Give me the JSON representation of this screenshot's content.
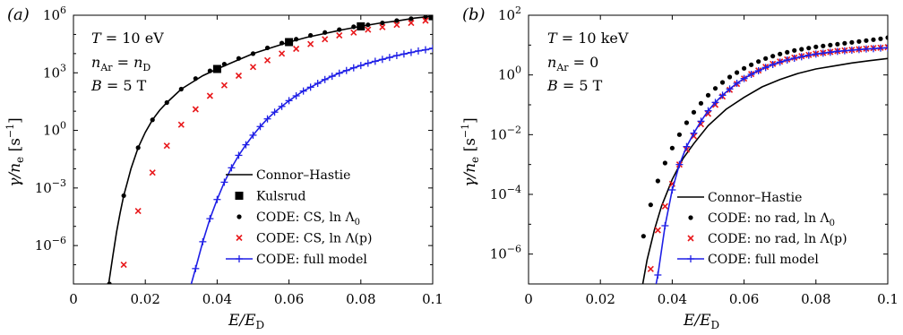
{
  "colors": {
    "black": "#000000",
    "red": "#e8191c",
    "blue": "#1f1fe6"
  },
  "chart_data": [
    {
      "type": "line",
      "panel_label": "(a)",
      "xlabel": "E/E_D",
      "ylabel": "γ/n_e [s^-1]",
      "xlim": [
        0,
        0.1
      ],
      "ylim_log10": [
        -8,
        6
      ],
      "y_scale": "log",
      "x_ticks": [
        0,
        0.02,
        0.04,
        0.06,
        0.08,
        0.1
      ],
      "x_tick_labels": [
        "0",
        "0.02",
        "0.04",
        "0.06",
        "0.08",
        "0.1"
      ],
      "y_tick_exponents": [
        -6,
        -3,
        0,
        3,
        6
      ],
      "y_tick_labels": [
        "10^-6",
        "10^-3",
        "10^0",
        "10^3",
        "10^6"
      ],
      "annotations": [
        "T = 10 eV",
        "n_Ar = n_D",
        "B = 5 T"
      ],
      "legend_position": "bottom-right",
      "series": [
        {
          "name": "Connor–Hastie",
          "style": "line",
          "color": "#000000",
          "x": [
            0.0098,
            0.011,
            0.012,
            0.013,
            0.014,
            0.015,
            0.016,
            0.018,
            0.02,
            0.022,
            0.024,
            0.026,
            0.028,
            0.03,
            0.033,
            0.036,
            0.04,
            0.045,
            0.05,
            0.055,
            0.06,
            0.065,
            0.07,
            0.075,
            0.08,
            0.085,
            0.09,
            0.095,
            0.1
          ],
          "log10_y": [
            -8.0,
            -6.5,
            -5.3,
            -4.3,
            -3.4,
            -2.7,
            -2.0,
            -0.9,
            -0.1,
            0.55,
            1.05,
            1.45,
            1.8,
            2.15,
            2.5,
            2.85,
            3.2,
            3.6,
            4.0,
            4.3,
            4.6,
            4.85,
            5.05,
            5.25,
            5.42,
            5.58,
            5.7,
            5.85,
            5.95
          ]
        },
        {
          "name": "Kulsrud",
          "style": "square",
          "color": "#000000",
          "x": [
            0.04,
            0.06,
            0.08,
            0.1
          ],
          "log10_y": [
            3.2,
            4.6,
            5.42,
            5.95
          ]
        },
        {
          "name": "CODE: CS, ln Λ0",
          "style": "dot",
          "color": "#000000",
          "x": [
            0.01,
            0.014,
            0.018,
            0.022,
            0.026,
            0.03,
            0.034,
            0.038,
            0.042,
            0.046,
            0.05,
            0.054,
            0.058,
            0.062,
            0.066,
            0.07,
            0.074,
            0.078,
            0.082,
            0.086,
            0.09,
            0.094,
            0.098
          ],
          "log10_y": [
            -8.0,
            -3.4,
            -0.9,
            0.55,
            1.45,
            2.15,
            2.7,
            3.1,
            3.45,
            3.75,
            4.0,
            4.3,
            4.55,
            4.75,
            4.95,
            5.1,
            5.25,
            5.4,
            5.5,
            5.6,
            5.72,
            5.82,
            5.9
          ]
        },
        {
          "name": "CODE: CS, ln Λ(p)",
          "style": "cross",
          "color": "#e8191c",
          "x": [
            0.014,
            0.018,
            0.022,
            0.026,
            0.03,
            0.034,
            0.038,
            0.042,
            0.046,
            0.05,
            0.054,
            0.058,
            0.062,
            0.066,
            0.07,
            0.074,
            0.078,
            0.082,
            0.086,
            0.09,
            0.094,
            0.098
          ],
          "log10_y": [
            -7.0,
            -4.2,
            -2.2,
            -0.8,
            0.3,
            1.1,
            1.8,
            2.35,
            2.85,
            3.3,
            3.65,
            4.0,
            4.25,
            4.5,
            4.75,
            4.95,
            5.1,
            5.25,
            5.38,
            5.5,
            5.6,
            5.72
          ]
        },
        {
          "name": "CODE: full model",
          "style": "line+plus",
          "color": "#1f1fe6",
          "x": [
            0.0328,
            0.034,
            0.036,
            0.038,
            0.04,
            0.042,
            0.044,
            0.046,
            0.048,
            0.05,
            0.052,
            0.054,
            0.056,
            0.058,
            0.06,
            0.062,
            0.064,
            0.066,
            0.068,
            0.07,
            0.072,
            0.074,
            0.076,
            0.078,
            0.08,
            0.082,
            0.084,
            0.086,
            0.088,
            0.09,
            0.092,
            0.094,
            0.096,
            0.098,
            0.1
          ],
          "log10_y": [
            -8.0,
            -7.2,
            -5.8,
            -4.6,
            -3.6,
            -2.7,
            -1.95,
            -1.3,
            -0.75,
            -0.25,
            0.2,
            0.6,
            0.95,
            1.25,
            1.55,
            1.8,
            2.05,
            2.25,
            2.45,
            2.65,
            2.82,
            2.98,
            3.12,
            3.26,
            3.38,
            3.5,
            3.6,
            3.7,
            3.8,
            3.9,
            3.98,
            4.06,
            4.14,
            4.2,
            4.28
          ]
        }
      ]
    },
    {
      "type": "line",
      "panel_label": "(b)",
      "xlabel": "E/E_D",
      "ylabel": "γ/n_e [s^-1]",
      "xlim": [
        0,
        0.1
      ],
      "ylim_log10": [
        -7,
        2
      ],
      "y_scale": "log",
      "x_ticks": [
        0,
        0.02,
        0.04,
        0.06,
        0.08,
        0.1
      ],
      "x_tick_labels": [
        "0",
        "0.02",
        "0.04",
        "0.06",
        "0.08",
        "0.1"
      ],
      "y_tick_exponents": [
        -6,
        -4,
        -2,
        0,
        2
      ],
      "y_tick_labels": [
        "10^-6",
        "10^-4",
        "10^-2",
        "10^0",
        "10^2"
      ],
      "annotations": [
        "T = 10 keV",
        "n_Ar = 0",
        "B = 5 T"
      ],
      "legend_position": "bottom-right",
      "series": [
        {
          "name": "Connor–Hastie",
          "style": "line",
          "color": "#000000",
          "x": [
            0.0318,
            0.033,
            0.035,
            0.037,
            0.04,
            0.043,
            0.046,
            0.05,
            0.055,
            0.06,
            0.065,
            0.07,
            0.075,
            0.08,
            0.085,
            0.09,
            0.095,
            0.1
          ],
          "log10_y": [
            -7.0,
            -6.2,
            -5.2,
            -4.4,
            -3.5,
            -2.8,
            -2.3,
            -1.7,
            -1.15,
            -0.75,
            -0.4,
            -0.15,
            0.05,
            0.2,
            0.3,
            0.4,
            0.48,
            0.55
          ]
        },
        {
          "name": "CODE: no rad, ln Λ0",
          "style": "dot",
          "color": "#000000",
          "x": [
            0.032,
            0.034,
            0.036,
            0.038,
            0.04,
            0.042,
            0.044,
            0.046,
            0.048,
            0.05,
            0.052,
            0.054,
            0.056,
            0.058,
            0.06,
            0.062,
            0.064,
            0.066,
            0.068,
            0.07,
            0.072,
            0.074,
            0.076,
            0.078,
            0.08,
            0.082,
            0.084,
            0.086,
            0.088,
            0.09,
            0.092,
            0.094,
            0.096,
            0.098,
            0.1
          ],
          "log10_y": [
            -5.4,
            -4.35,
            -3.55,
            -2.95,
            -2.45,
            -2.0,
            -1.6,
            -1.25,
            -0.95,
            -0.68,
            -0.45,
            -0.25,
            -0.07,
            0.08,
            0.22,
            0.34,
            0.45,
            0.55,
            0.63,
            0.7,
            0.76,
            0.82,
            0.86,
            0.9,
            0.94,
            0.97,
            1.0,
            1.03,
            1.06,
            1.09,
            1.12,
            1.15,
            1.18,
            1.21,
            1.25
          ]
        },
        {
          "name": "CODE: no rad, ln Λ(p)",
          "style": "cross",
          "color": "#e8191c",
          "x": [
            0.034,
            0.036,
            0.038,
            0.04,
            0.042,
            0.044,
            0.046,
            0.048,
            0.05,
            0.052,
            0.054,
            0.056,
            0.058,
            0.06,
            0.062,
            0.064,
            0.066,
            0.068,
            0.07,
            0.072,
            0.074,
            0.076,
            0.078,
            0.08,
            0.082,
            0.084,
            0.086,
            0.088,
            0.09,
            0.092,
            0.094,
            0.096,
            0.098,
            0.1
          ],
          "log10_y": [
            -6.5,
            -5.2,
            -4.4,
            -3.65,
            -3.0,
            -2.5,
            -2.05,
            -1.65,
            -1.3,
            -1.0,
            -0.72,
            -0.5,
            -0.3,
            -0.12,
            0.03,
            0.15,
            0.27,
            0.37,
            0.45,
            0.52,
            0.58,
            0.63,
            0.67,
            0.71,
            0.74,
            0.77,
            0.8,
            0.82,
            0.84,
            0.86,
            0.88,
            0.9,
            0.91,
            0.93
          ]
        },
        {
          "name": "CODE: full model",
          "style": "line+plus",
          "color": "#1f1fe6",
          "x": [
            0.0355,
            0.036,
            0.038,
            0.04,
            0.042,
            0.044,
            0.046,
            0.048,
            0.05,
            0.052,
            0.054,
            0.056,
            0.058,
            0.06,
            0.062,
            0.064,
            0.066,
            0.068,
            0.07,
            0.072,
            0.074,
            0.076,
            0.078,
            0.08,
            0.082,
            0.084,
            0.086,
            0.088,
            0.09,
            0.092,
            0.094,
            0.096,
            0.098,
            0.1
          ],
          "log10_y": [
            -7.0,
            -6.7,
            -5.05,
            -3.85,
            -3.0,
            -2.4,
            -1.95,
            -1.55,
            -1.2,
            -0.92,
            -0.68,
            -0.47,
            -0.28,
            -0.12,
            0.02,
            0.14,
            0.25,
            0.35,
            0.43,
            0.5,
            0.56,
            0.61,
            0.66,
            0.7,
            0.73,
            0.76,
            0.79,
            0.81,
            0.83,
            0.85,
            0.87,
            0.88,
            0.9,
            0.91
          ]
        }
      ]
    }
  ]
}
